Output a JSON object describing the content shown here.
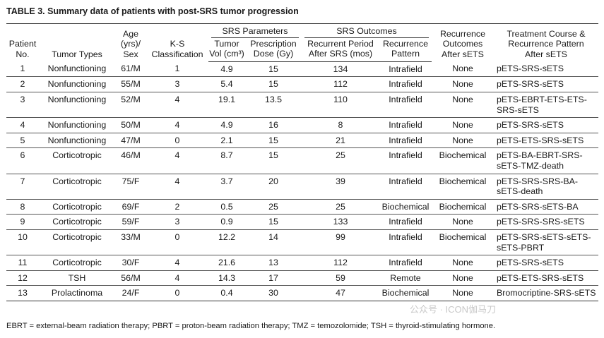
{
  "title": "TABLE 3. Summary data of patients with post-SRS tumor progression",
  "headers": {
    "patient": "Patient\nNo.",
    "tumor_types": "Tumor Types",
    "age_sex": "Age\n(yrs)/\nSex",
    "ks": "K-S\nClassification",
    "srs_params": "SRS Parameters",
    "tumor_vol": "Tumor\nVol (cm³)",
    "dose": "Prescription\nDose (Gy)",
    "srs_outcomes": "SRS Outcomes",
    "recur_period": "Recurrent Period\nAfter SRS (mos)",
    "recur_pattern": "Recurrence\nPattern",
    "recur_outcomes": "Recurrence\nOutcomes\nAfter sETS",
    "treatment": "Treatment Course &\nRecurrence Pattern\nAfter sETS"
  },
  "rows": [
    [
      "1",
      "Nonfunctioning",
      "61/M",
      "1",
      "4.9",
      "15",
      "134",
      "Intrafield",
      "None",
      "pETS-SRS-sETS"
    ],
    [
      "2",
      "Nonfunctioning",
      "55/M",
      "3",
      "5.4",
      "15",
      "112",
      "Intrafield",
      "None",
      "pETS-SRS-sETS"
    ],
    [
      "3",
      "Nonfunctioning",
      "52/M",
      "4",
      "19.1",
      "13.5",
      "110",
      "Intrafield",
      "None",
      "pETS-EBRT-ETS-ETS-\nSRS-sETS"
    ],
    [
      "4",
      "Nonfunctioning",
      "50/M",
      "4",
      "4.9",
      "16",
      "8",
      "Intrafield",
      "None",
      "pETS-SRS-sETS"
    ],
    [
      "5",
      "Nonfunctioning",
      "47/M",
      "0",
      "2.1",
      "15",
      "21",
      "Intrafield",
      "None",
      "pETS-ETS-SRS-sETS"
    ],
    [
      "6",
      "Corticotropic",
      "46/M",
      "4",
      "8.7",
      "15",
      "25",
      "Intrafield",
      "Biochemical",
      "pETS-BA-EBRT-SRS-\nsETS-TMZ-death"
    ],
    [
      "7",
      "Corticotropic",
      "75/F",
      "4",
      "3.7",
      "20",
      "39",
      "Intrafield",
      "Biochemical",
      "pETS-SRS-SRS-BA-\nsETS-death"
    ],
    [
      "8",
      "Corticotropic",
      "69/F",
      "2",
      "0.5",
      "25",
      "25",
      "Biochemical",
      "Biochemical",
      "pETS-SRS-sETS-BA"
    ],
    [
      "9",
      "Corticotropic",
      "59/F",
      "3",
      "0.9",
      "15",
      "133",
      "Intrafield",
      "None",
      "pETS-SRS-SRS-sETS"
    ],
    [
      "10",
      "Corticotropic",
      "33/M",
      "0",
      "12.2",
      "14",
      "99",
      "Intrafield",
      "Biochemical",
      "pETS-SRS-sETS-sETS-\nsETS-PBRT"
    ],
    [
      "11",
      "Corticotropic",
      "30/F",
      "4",
      "21.6",
      "13",
      "112",
      "Intrafield",
      "None",
      "pETS-SRS-sETS"
    ],
    [
      "12",
      "TSH",
      "56/M",
      "4",
      "14.3",
      "17",
      "59",
      "Remote",
      "None",
      "pETS-ETS-SRS-sETS"
    ],
    [
      "13",
      "Prolactinoma",
      "24/F",
      "0",
      "0.4",
      "30",
      "47",
      "Biochemical",
      "None",
      "Bromocriptine-SRS-sETS"
    ]
  ],
  "footnote": "EBRT = external-beam radiation therapy; PBRT = proton-beam radiation therapy; TMZ = temozolomide; TSH = thyroid-stimulating hormone.",
  "watermark": "公众号 · ICON伽马刀"
}
